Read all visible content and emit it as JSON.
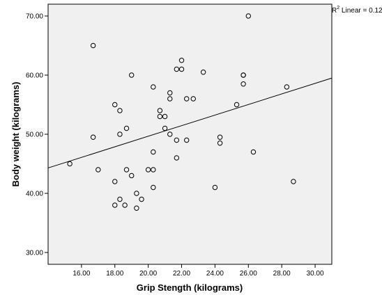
{
  "chart_data": {
    "type": "scatter",
    "xlabel": "Grip Stength (kilograms)",
    "ylabel": "Body weight (kilograms)",
    "xlim": [
      14.0,
      31.0
    ],
    "ylim": [
      28.0,
      72.0
    ],
    "x_ticks": [
      "16.00",
      "18.00",
      "20.00",
      "22.00",
      "24.00",
      "26.00",
      "28.00",
      "30.00"
    ],
    "y_ticks": [
      "30.00",
      "40.00",
      "50.00",
      "60.00",
      "70.00"
    ],
    "r2_label": {
      "prefix": "R",
      "sup": "2",
      "suffix": " Linear = 0.12"
    },
    "fit_line": {
      "x": [
        14.0,
        31.0
      ],
      "y": [
        44.3,
        59.5
      ]
    },
    "grid": false,
    "plot_background": "#f0f0f0",
    "marker_color": "#000000",
    "points": [
      [
        15.3,
        45
      ],
      [
        16.7,
        65
      ],
      [
        16.7,
        49.5
      ],
      [
        17.0,
        44
      ],
      [
        18.0,
        55
      ],
      [
        18.0,
        42
      ],
      [
        18.0,
        38
      ],
      [
        18.3,
        54
      ],
      [
        18.3,
        50
      ],
      [
        18.3,
        39
      ],
      [
        18.6,
        38
      ],
      [
        18.7,
        51
      ],
      [
        18.7,
        44
      ],
      [
        19.0,
        60
      ],
      [
        19.0,
        43
      ],
      [
        19.3,
        40
      ],
      [
        19.3,
        37.5
      ],
      [
        19.6,
        39
      ],
      [
        20.0,
        44
      ],
      [
        20.3,
        58
      ],
      [
        20.3,
        47
      ],
      [
        20.3,
        44
      ],
      [
        20.3,
        41
      ],
      [
        20.7,
        54
      ],
      [
        20.7,
        53
      ],
      [
        21.0,
        53
      ],
      [
        21.0,
        51
      ],
      [
        21.3,
        57
      ],
      [
        21.3,
        56
      ],
      [
        21.3,
        50
      ],
      [
        21.7,
        61
      ],
      [
        21.7,
        49
      ],
      [
        21.7,
        46
      ],
      [
        22.0,
        62.5
      ],
      [
        22.0,
        61
      ],
      [
        22.3,
        56
      ],
      [
        22.3,
        49
      ],
      [
        22.7,
        56
      ],
      [
        23.3,
        60.5
      ],
      [
        24.0,
        41
      ],
      [
        24.3,
        49.5
      ],
      [
        24.3,
        48.5
      ],
      [
        25.3,
        55
      ],
      [
        25.7,
        60
      ],
      [
        25.7,
        60
      ],
      [
        25.7,
        58.5
      ],
      [
        26.0,
        70
      ],
      [
        26.3,
        47
      ],
      [
        28.3,
        58
      ],
      [
        28.7,
        42
      ]
    ]
  }
}
